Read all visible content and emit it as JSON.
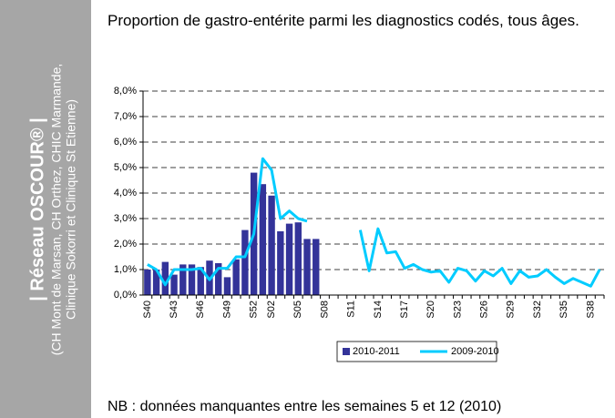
{
  "sidebar": {
    "title": "| Réseau OSCOUR® |",
    "subtitle_lines": [
      "(CH Mont de Marsan, CH Orthez, CHIC Marmande,",
      "Clinique Sokorri et Clinique St Etienne)"
    ]
  },
  "note": "NB : données manquantes entre les semaines 5 et 12 (2010)",
  "chart_data": {
    "type": "bar_line",
    "title": "Proportion de gastro-entérite parmi les diagnostics codés, tous âges.",
    "categories": [
      "S40",
      null,
      null,
      "S43",
      null,
      null,
      "S46",
      null,
      null,
      "S49",
      null,
      null,
      "S52",
      null,
      "S02",
      null,
      null,
      "S05",
      null,
      null,
      "S08",
      null,
      null,
      "S11",
      null,
      null,
      "S14",
      null,
      null,
      "S17",
      null,
      null,
      "S20",
      null,
      null,
      "S23",
      null,
      null,
      "S26",
      null,
      null,
      "S29",
      null,
      null,
      "S32",
      null,
      null,
      "S35",
      null,
      null,
      "S38",
      null
    ],
    "series": [
      {
        "name": "2010-2011",
        "kind": "bar",
        "color": "#333399",
        "values": [
          1.0,
          1.0,
          1.3,
          0.8,
          1.2,
          1.2,
          1.1,
          1.35,
          1.25,
          0.7,
          1.4,
          2.55,
          4.8,
          4.35,
          3.9,
          2.5,
          2.8,
          2.85,
          2.2,
          2.2,
          null,
          null,
          null,
          null,
          null,
          null,
          null,
          null,
          null,
          null,
          null,
          null,
          null,
          null,
          null,
          null,
          null,
          null,
          null,
          null,
          null,
          null,
          null,
          null,
          null,
          null,
          null,
          null,
          null,
          null,
          null,
          null
        ]
      },
      {
        "name": "2009-2010",
        "kind": "line",
        "color": "#00ccff",
        "values": [
          1.2,
          1.0,
          0.4,
          1.0,
          1.0,
          1.0,
          1.05,
          0.6,
          1.05,
          1.05,
          1.5,
          1.5,
          2.4,
          5.35,
          4.9,
          3.0,
          3.3,
          3.0,
          2.9,
          null,
          null,
          null,
          null,
          null,
          2.55,
          0.95,
          2.6,
          1.65,
          1.7,
          1.05,
          1.2,
          1.0,
          0.9,
          0.95,
          0.5,
          1.05,
          0.95,
          0.55,
          0.95,
          0.75,
          1.05,
          0.45,
          0.95,
          0.7,
          0.75,
          1.0,
          0.7,
          0.45,
          0.65,
          0.5,
          0.35,
          1.0
        ]
      }
    ],
    "ylim": [
      0,
      8
    ],
    "yticks": [
      {
        "value": 0,
        "label": "0,0%"
      },
      {
        "value": 1,
        "label": "1,0%"
      },
      {
        "value": 2,
        "label": "2,0%"
      },
      {
        "value": 3,
        "label": "3,0%"
      },
      {
        "value": 4,
        "label": "4,0%"
      },
      {
        "value": 5,
        "label": "5,0%"
      },
      {
        "value": 6,
        "label": "6,0%"
      },
      {
        "value": 7,
        "label": "7,0%"
      },
      {
        "value": 8,
        "label": "8,0%"
      }
    ],
    "grid": true,
    "legend": "bottom"
  }
}
